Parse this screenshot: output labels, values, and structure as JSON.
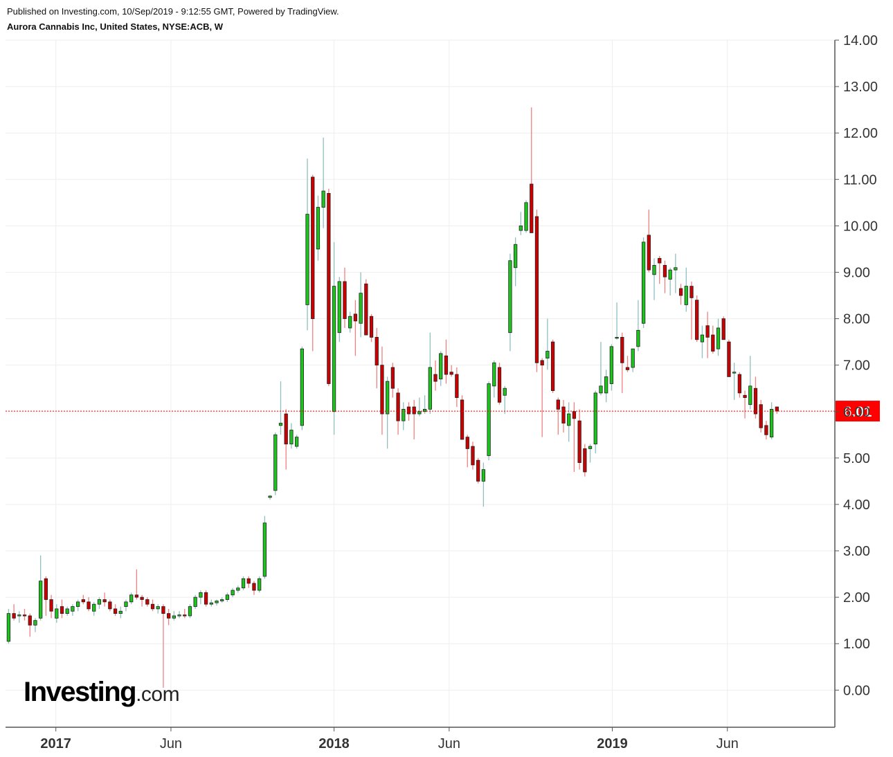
{
  "header": {
    "published": "Published on Investing.com, 10/Sep/2019 - 9:12:55 GMT, Powered by TradingView.",
    "symbol": "Aurora Cannabis Inc, United States, NYSE:ACB, W"
  },
  "logo": {
    "main": "Investing",
    "sub": ".com"
  },
  "colors": {
    "up": "#1ec41e",
    "down": "#cc0000",
    "up_wick": "#8fbfbf",
    "down_wick": "#f08080",
    "last_price_line": "#ff0000",
    "grid": "#eeeeee",
    "axis": "#555555"
  },
  "chart_data": {
    "type": "candlestick",
    "timeframe": "W",
    "y_ticks": [
      "0.00",
      "1.00",
      "2.00",
      "3.00",
      "4.00",
      "5.00",
      "6.00",
      "7.00",
      "8.00",
      "9.00",
      "10.00",
      "11.00",
      "12.00",
      "13.00",
      "14.00"
    ],
    "ylim": [
      -0.8,
      14.0
    ],
    "x_ticks": [
      {
        "label": "2017",
        "date": "2017-01-01",
        "bold": true
      },
      {
        "label": "Jun",
        "date": "2017-06-01",
        "bold": false
      },
      {
        "label": "2018",
        "date": "2018-01-01",
        "bold": true
      },
      {
        "label": "Jun",
        "date": "2018-06-01",
        "bold": false
      },
      {
        "label": "2019",
        "date": "2019-01-01",
        "bold": true
      },
      {
        "label": "Jun",
        "date": "2019-06-01",
        "bold": false
      }
    ],
    "xlim": [
      "2016-10-27",
      "2019-10-20"
    ],
    "first_bar_date": "2016-10-31",
    "last_price": {
      "value": 6.01,
      "label": "6.01"
    },
    "ohlc": [
      [
        1.05,
        1.75,
        1.0,
        1.65
      ],
      [
        1.65,
        1.85,
        1.5,
        1.55
      ],
      [
        1.6,
        1.7,
        1.45,
        1.62
      ],
      [
        1.62,
        1.75,
        1.5,
        1.6
      ],
      [
        1.6,
        1.65,
        1.15,
        1.4
      ],
      [
        1.4,
        1.55,
        1.25,
        1.5
      ],
      [
        1.55,
        2.9,
        1.5,
        2.35
      ],
      [
        2.4,
        2.45,
        1.6,
        1.95
      ],
      [
        1.95,
        2.05,
        1.55,
        1.7
      ],
      [
        1.55,
        1.85,
        1.45,
        1.75
      ],
      [
        1.8,
        1.95,
        1.55,
        1.65
      ],
      [
        1.65,
        1.8,
        1.6,
        1.75
      ],
      [
        1.7,
        1.85,
        1.6,
        1.8
      ],
      [
        1.8,
        1.95,
        1.7,
        1.9
      ],
      [
        1.95,
        2.05,
        1.85,
        1.9
      ],
      [
        1.9,
        2.0,
        1.7,
        1.75
      ],
      [
        1.7,
        1.9,
        1.6,
        1.85
      ],
      [
        1.85,
        2.0,
        1.75,
        1.95
      ],
      [
        1.95,
        2.1,
        1.8,
        1.9
      ],
      [
        1.9,
        1.95,
        1.7,
        1.75
      ],
      [
        1.75,
        1.85,
        1.6,
        1.65
      ],
      [
        1.65,
        1.8,
        1.55,
        1.7
      ],
      [
        1.8,
        1.95,
        1.7,
        1.9
      ],
      [
        1.9,
        2.1,
        1.85,
        2.05
      ],
      [
        2.05,
        2.6,
        1.95,
        2.0
      ],
      [
        2.0,
        2.05,
        1.8,
        1.95
      ],
      [
        1.95,
        2.0,
        1.8,
        1.85
      ],
      [
        1.85,
        1.95,
        1.7,
        1.75
      ],
      [
        1.75,
        1.85,
        1.65,
        1.8
      ],
      [
        1.8,
        1.85,
        0.05,
        1.65
      ],
      [
        1.65,
        1.75,
        1.4,
        1.55
      ],
      [
        1.55,
        1.7,
        1.5,
        1.6
      ],
      [
        1.6,
        1.7,
        1.55,
        1.62
      ],
      [
        1.62,
        1.75,
        1.55,
        1.6
      ],
      [
        1.6,
        1.85,
        1.55,
        1.8
      ],
      [
        1.8,
        2.05,
        1.75,
        2.0
      ],
      [
        2.0,
        2.15,
        1.85,
        2.1
      ],
      [
        2.1,
        2.15,
        1.8,
        1.85
      ],
      [
        1.85,
        1.95,
        1.8,
        1.88
      ],
      [
        1.88,
        1.95,
        1.82,
        1.92
      ],
      [
        1.92,
        2.0,
        1.88,
        1.95
      ],
      [
        1.95,
        2.1,
        1.9,
        2.05
      ],
      [
        2.05,
        2.2,
        2.0,
        2.15
      ],
      [
        2.15,
        2.25,
        2.1,
        2.2
      ],
      [
        2.2,
        2.45,
        2.15,
        2.4
      ],
      [
        2.4,
        2.45,
        2.2,
        2.3
      ],
      [
        2.3,
        2.35,
        2.05,
        2.15
      ],
      [
        2.15,
        2.45,
        2.1,
        2.4
      ],
      [
        2.45,
        3.75,
        2.4,
        3.6
      ],
      [
        4.15,
        4.2,
        4.1,
        4.18
      ],
      [
        4.3,
        5.55,
        4.2,
        5.5
      ],
      [
        5.7,
        6.65,
        5.5,
        5.75
      ],
      [
        5.95,
        6.05,
        4.75,
        5.3
      ],
      [
        5.3,
        5.75,
        5.2,
        5.6
      ],
      [
        5.25,
        5.5,
        5.2,
        5.45
      ],
      [
        5.7,
        7.4,
        5.6,
        7.35
      ],
      [
        8.3,
        11.45,
        7.75,
        10.25
      ],
      [
        11.05,
        11.1,
        7.3,
        8.0
      ],
      [
        9.5,
        10.65,
        9.25,
        10.4
      ],
      [
        10.4,
        11.9,
        9.95,
        10.75
      ],
      [
        10.7,
        10.8,
        6.55,
        6.6
      ],
      [
        6.0,
        9.65,
        5.5,
        8.7
      ],
      [
        7.7,
        8.9,
        7.5,
        8.8
      ],
      [
        8.8,
        9.1,
        7.8,
        8.0
      ],
      [
        7.8,
        8.15,
        7.7,
        8.05
      ],
      [
        8.1,
        8.4,
        7.2,
        7.95
      ],
      [
        7.9,
        9.0,
        7.6,
        8.55
      ],
      [
        8.75,
        8.85,
        7.7,
        7.65
      ],
      [
        8.05,
        8.1,
        7.5,
        7.6
      ],
      [
        7.6,
        7.8,
        6.5,
        7.0
      ],
      [
        7.0,
        7.4,
        5.5,
        5.95
      ],
      [
        5.95,
        6.75,
        5.2,
        6.65
      ],
      [
        6.95,
        7.05,
        6.3,
        6.5
      ],
      [
        6.4,
        6.5,
        5.5,
        5.8
      ],
      [
        5.8,
        6.2,
        5.6,
        6.05
      ],
      [
        6.1,
        6.2,
        5.8,
        5.95
      ],
      [
        6.1,
        6.25,
        5.4,
        5.95
      ],
      [
        5.95,
        6.3,
        5.9,
        6.0
      ],
      [
        6.0,
        6.35,
        5.95,
        6.05
      ],
      [
        6.05,
        7.7,
        5.95,
        6.95
      ],
      [
        6.8,
        7.1,
        6.45,
        6.65
      ],
      [
        6.7,
        7.3,
        6.55,
        7.25
      ],
      [
        7.2,
        7.55,
        6.6,
        6.8
      ],
      [
        6.85,
        7.0,
        6.75,
        6.8
      ],
      [
        6.8,
        6.95,
        6.1,
        6.3
      ],
      [
        6.25,
        6.35,
        5.4,
        5.4
      ],
      [
        5.45,
        5.5,
        4.8,
        5.2
      ],
      [
        5.25,
        5.35,
        4.75,
        4.85
      ],
      [
        4.95,
        5.0,
        4.45,
        4.5
      ],
      [
        4.5,
        4.9,
        3.95,
        4.75
      ],
      [
        5.05,
        6.65,
        4.95,
        6.6
      ],
      [
        6.55,
        7.1,
        6.3,
        7.05
      ],
      [
        6.95,
        7.05,
        6.15,
        6.2
      ],
      [
        6.35,
        6.55,
        5.95,
        6.5
      ],
      [
        7.7,
        9.4,
        7.3,
        9.25
      ],
      [
        9.1,
        9.75,
        8.7,
        9.6
      ],
      [
        9.9,
        10.3,
        9.8,
        10.0
      ],
      [
        9.9,
        10.55,
        9.85,
        10.5
      ],
      [
        10.9,
        12.55,
        9.9,
        9.85
      ],
      [
        10.2,
        10.35,
        6.85,
        7.05
      ],
      [
        7.1,
        7.15,
        5.45,
        7.0
      ],
      [
        7.15,
        8.0,
        6.9,
        7.3
      ],
      [
        7.5,
        7.55,
        6.4,
        6.45
      ],
      [
        6.25,
        6.3,
        5.5,
        6.05
      ],
      [
        6.1,
        6.25,
        5.55,
        5.75
      ],
      [
        5.7,
        6.2,
        5.35,
        5.95
      ],
      [
        6.0,
        6.2,
        4.7,
        5.85
      ],
      [
        5.8,
        6.05,
        4.75,
        4.9
      ],
      [
        5.2,
        5.3,
        4.6,
        4.7
      ],
      [
        5.2,
        5.3,
        4.9,
        5.25
      ],
      [
        5.3,
        6.45,
        5.1,
        6.4
      ],
      [
        6.4,
        7.5,
        6.35,
        6.55
      ],
      [
        6.4,
        6.9,
        6.2,
        6.75
      ],
      [
        6.6,
        7.45,
        6.45,
        7.4
      ],
      [
        7.6,
        8.35,
        7.55,
        7.6
      ],
      [
        7.6,
        7.7,
        6.4,
        7.05
      ],
      [
        6.95,
        7.2,
        6.85,
        6.9
      ],
      [
        6.95,
        7.3,
        6.85,
        7.35
      ],
      [
        7.4,
        8.4,
        7.3,
        7.75
      ],
      [
        7.9,
        9.75,
        7.8,
        9.65
      ],
      [
        9.8,
        10.35,
        9.0,
        9.05
      ],
      [
        8.95,
        9.3,
        8.4,
        9.15
      ],
      [
        9.3,
        9.35,
        8.75,
        9.2
      ],
      [
        9.15,
        9.25,
        8.55,
        8.9
      ],
      [
        8.85,
        9.1,
        8.5,
        9.05
      ],
      [
        9.05,
        9.4,
        8.55,
        9.1
      ],
      [
        8.65,
        8.75,
        8.3,
        8.5
      ],
      [
        8.3,
        9.1,
        8.15,
        8.7
      ],
      [
        8.7,
        8.8,
        7.55,
        8.45
      ],
      [
        8.4,
        8.5,
        7.5,
        7.55
      ],
      [
        7.5,
        7.85,
        7.15,
        7.65
      ],
      [
        7.85,
        8.15,
        7.15,
        7.6
      ],
      [
        7.65,
        7.85,
        7.25,
        7.3
      ],
      [
        7.35,
        8.0,
        7.2,
        7.8
      ],
      [
        8.0,
        8.05,
        7.6,
        7.55
      ],
      [
        7.5,
        7.55,
        6.75,
        6.75
      ],
      [
        6.85,
        7.05,
        6.25,
        6.85
      ],
      [
        6.8,
        6.85,
        6.3,
        6.4
      ],
      [
        6.35,
        6.45,
        5.85,
        6.3
      ],
      [
        6.15,
        7.2,
        6.05,
        6.55
      ],
      [
        6.5,
        6.75,
        5.85,
        5.95
      ],
      [
        6.15,
        6.25,
        5.55,
        5.65
      ],
      [
        5.7,
        5.8,
        5.4,
        5.5
      ],
      [
        5.45,
        6.2,
        5.4,
        6.05
      ],
      [
        6.1,
        6.1,
        5.95,
        6.01
      ]
    ]
  }
}
